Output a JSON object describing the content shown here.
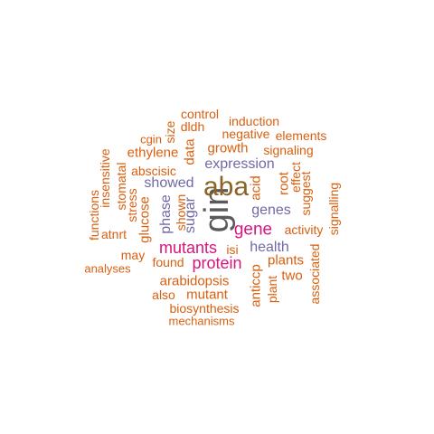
{
  "words": {
    "gin": "gin",
    "aba": "aba",
    "gene": "gene",
    "mutants": "mutants",
    "protein": "protein",
    "expression": "expression",
    "showed": "showed",
    "genes": "genes",
    "health": "health",
    "sugar": "sugar",
    "phase": "phase",
    "control": "control",
    "induction": "induction",
    "dldh": "dldh",
    "size": "size",
    "negative": "negative",
    "elements": "elements",
    "cgin": "cgin",
    "growth": "growth",
    "signaling": "signaling",
    "ethylene": "ethylene",
    "data": "data",
    "insensitive": "insensitive",
    "abscisic": "abscisic",
    "effect": "effect",
    "root": "root",
    "stomatal": "stomatal",
    "suggest": "suggest",
    "functions": "functions",
    "stress": "stress",
    "acid": "acid",
    "shown": "shown",
    "glucose": "glucose",
    "signalling": "signalling",
    "atnrt": "atnrt",
    "activity": "activity",
    "isi": "isi",
    "may": "may",
    "plants": "plants",
    "found": "found",
    "analyses": "analyses",
    "anticcp": "anticcp",
    "two": "two",
    "arabidopsis": "arabidopsis",
    "associated": "associated",
    "plant": "plant",
    "also": "also",
    "mutant": "mutant",
    "biosynthesis": "biosynthesis",
    "mechanisms": "mechanisms"
  }
}
